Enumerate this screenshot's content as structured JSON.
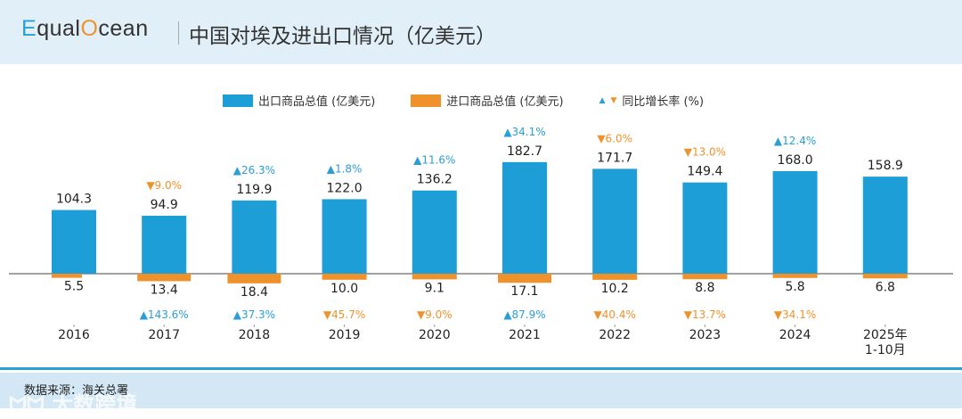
{
  "header": {
    "logo": "EqualOcean",
    "title": "中国对埃及进出口情况（亿美元）"
  },
  "legend": {
    "exports": "出口商品总值 (亿美元)",
    "imports": "进口商品总值 (亿美元)",
    "growth": "同比增长率 (%)"
  },
  "footer": {
    "source": "数据来源：海关总署",
    "watermark": "大数跨境"
  },
  "colors": {
    "exports": "#1e9ed6",
    "imports": "#f0922b",
    "up": "#2a9fd6",
    "down": "#f0922b"
  },
  "chart_data": {
    "type": "bar",
    "categories": [
      "2016",
      "2017",
      "2018",
      "2019",
      "2020",
      "2021",
      "2022",
      "2023",
      "2024",
      "2025年\n1-10月"
    ],
    "series": [
      {
        "name": "出口商品总值 (亿美元)",
        "values": [
          104.3,
          94.9,
          119.9,
          122.0,
          136.2,
          182.7,
          171.7,
          149.4,
          168.0,
          158.9
        ],
        "growth": [
          null,
          "▼9.0%",
          "▲26.3%",
          "▲1.8%",
          "▲11.6%",
          "▲34.1%",
          "▼6.0%",
          "▼13.0%",
          "▲12.4%",
          null
        ]
      },
      {
        "name": "进口商品总值 (亿美元)",
        "values": [
          5.5,
          13.4,
          18.4,
          10.0,
          9.1,
          17.1,
          10.2,
          8.8,
          5.8,
          6.8
        ],
        "growth": [
          null,
          "▲143.6%",
          "▲37.3%",
          "▼45.7%",
          "▼9.0%",
          "▲87.9%",
          "▼40.4%",
          "▼13.7%",
          "▼34.1%",
          null
        ]
      }
    ],
    "legend_position": "top",
    "grid": false
  }
}
